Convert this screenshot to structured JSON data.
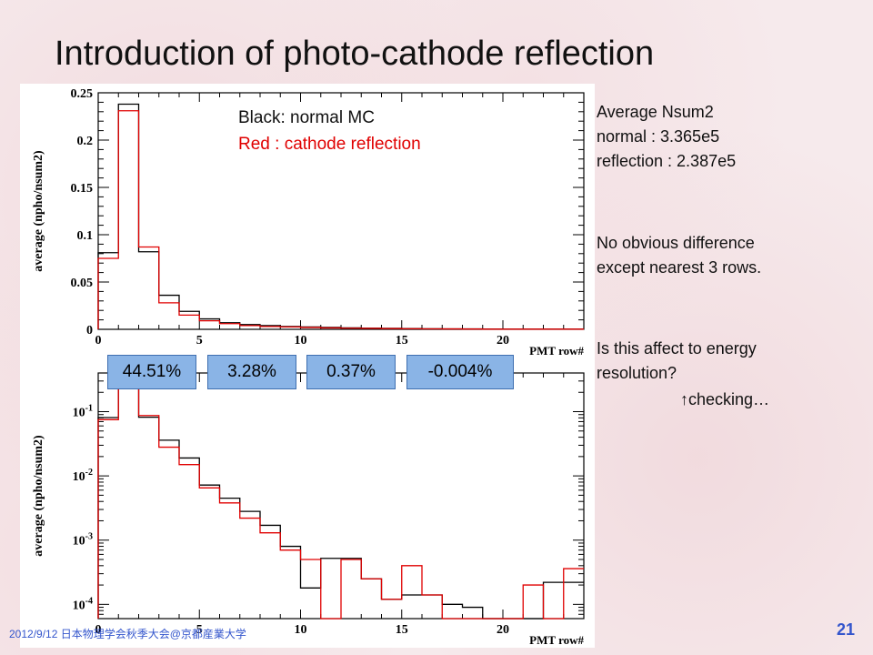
{
  "slide": {
    "title": "Introduction of photo-cathode reflection",
    "footer_date": "2012/9/12 日本物理学会秋季大会@京都産業大学",
    "page_number": "21"
  },
  "legend": {
    "black_label": "Black: normal MC",
    "red_label": "Red : cathode reflection",
    "black_color": "#000000",
    "red_color": "#e00000"
  },
  "percent_boxes": [
    "44.51%",
    "3.28%",
    "0.37%",
    "-0.004%"
  ],
  "side_notes": {
    "average_title": "Average Nsum2",
    "normal_line": "normal : 3.365e5",
    "reflection_line": "reflection : 2.387e5",
    "diff_line1": "No obvious difference",
    "diff_line2": "except nearest 3 rows.",
    "question_line1": "Is this affect to energy",
    "question_line2": "resolution?",
    "checking_line": "↑checking…"
  },
  "chart_data": [
    {
      "type": "histogram",
      "scale": "linear",
      "xlabel": "PMT row#",
      "ylabel": "average (npho/nsum2)",
      "xlim": [
        0,
        24
      ],
      "ylim": [
        0,
        0.25
      ],
      "yticks": [
        0,
        0.05,
        0.1,
        0.15,
        0.2,
        0.25
      ],
      "ytick_labels": [
        "0",
        "0.05",
        "0.1",
        "0.15",
        "0.2",
        "0.25"
      ],
      "xticks": [
        0,
        5,
        10,
        15,
        20
      ],
      "xtick_labels": [
        "0",
        "5",
        "10",
        "15",
        "20"
      ],
      "bin_edges": [
        0,
        1,
        2,
        3,
        4,
        5,
        6,
        7,
        8,
        9,
        10,
        11,
        12,
        13,
        14,
        15,
        16,
        17,
        18,
        19,
        20,
        21,
        22,
        23,
        24
      ],
      "series": [
        {
          "name": "normal MC",
          "color": "#000000",
          "values": [
            0.081,
            0.238,
            0.082,
            0.036,
            0.019,
            0.011,
            0.007,
            0.005,
            0.004,
            0.003,
            0.0025,
            0.002,
            0.0015,
            0.0012,
            0.001,
            0.0008,
            0.0006,
            0.0005,
            0.0004,
            0.0003,
            0.0002,
            0.0002,
            0.0002,
            0.0002
          ]
        },
        {
          "name": "cathode reflection",
          "color": "#e00000",
          "values": [
            0.075,
            0.231,
            0.087,
            0.028,
            0.015,
            0.009,
            0.006,
            0.004,
            0.003,
            0.0025,
            0.002,
            0.0015,
            0.0012,
            0.001,
            0.0008,
            0.0006,
            0.0005,
            0.0004,
            0.0003,
            0.0002,
            0.0002,
            0.0002,
            0.0002,
            0.0002
          ]
        }
      ]
    },
    {
      "type": "histogram",
      "scale": "log",
      "xlabel": "PMT row#",
      "ylabel": "average (npho/nsum2)",
      "xlim": [
        0,
        24
      ],
      "ylim": [
        6e-05,
        0.4
      ],
      "yticks": [
        0.0001,
        0.001,
        0.01,
        0.1
      ],
      "ytick_labels": [
        "10^-4",
        "10^-3",
        "10^-2",
        "10^-1"
      ],
      "xticks": [
        0,
        5,
        10,
        15,
        20
      ],
      "xtick_labels": [
        "0",
        "5",
        "10",
        "15",
        "20"
      ],
      "bin_edges": [
        0,
        1,
        2,
        3,
        4,
        5,
        6,
        7,
        8,
        9,
        10,
        11,
        12,
        13,
        14,
        15,
        16,
        17,
        18,
        19,
        20,
        21,
        22,
        23,
        24
      ],
      "series": [
        {
          "name": "normal MC",
          "color": "#000000",
          "values": [
            0.081,
            0.238,
            0.082,
            0.036,
            0.019,
            0.0072,
            0.0045,
            0.0028,
            0.0017,
            0.0008,
            0.00018,
            0.00052,
            0.00052,
            0.00025,
            0.00012,
            0.00014,
            0.00014,
            0.0001,
            9e-05,
            5e-05,
            5e-05,
            5e-05,
            0.00022,
            0.00022
          ]
        },
        {
          "name": "cathode reflection",
          "color": "#e00000",
          "values": [
            0.075,
            0.231,
            0.087,
            0.028,
            0.015,
            0.0065,
            0.0038,
            0.0022,
            0.0013,
            0.0007,
            0.0005,
            5e-05,
            0.0005,
            0.00025,
            0.00012,
            0.0004,
            0.00014,
            5e-05,
            4e-05,
            4e-05,
            4e-05,
            0.0002,
            5e-05,
            0.00036
          ]
        }
      ]
    }
  ]
}
